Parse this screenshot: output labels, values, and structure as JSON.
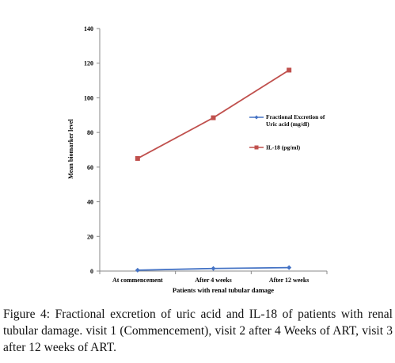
{
  "chart_data": {
    "type": "line",
    "title": "",
    "xlabel": "Patients with renal tubular damage",
    "ylabel": "Mean biomarker level",
    "categories": [
      "At commencement",
      "After 4 weeks",
      "After 12 weeks"
    ],
    "ylim": [
      0,
      140
    ],
    "yticks": [
      0,
      20,
      40,
      60,
      80,
      100,
      120,
      140
    ],
    "grid": false,
    "legend_position": "right",
    "series": [
      {
        "name": "Fractional Excretion of Uric acid (mg/dl)",
        "values": [
          0.5,
          1.5,
          2.0
        ],
        "color": "#4472C4",
        "marker": "diamond"
      },
      {
        "name": "IL-18 (pg/ml)",
        "values": [
          65,
          88.5,
          116
        ],
        "color": "#C0504D",
        "marker": "square"
      }
    ],
    "legend": {
      "fe_line1": "Fractional Excretion of",
      "fe_line2": "Uric acid (mg/dl)",
      "il18": "IL-18 (pg/ml)"
    }
  },
  "caption": {
    "label": "Figure 4:",
    "text": " Fractional excretion of uric acid and IL-18 of patients with renal tubular damage. visit 1 (Commencement), visit 2 after 4 Weeks of ART, visit 3 after 12 weeks of ART."
  }
}
